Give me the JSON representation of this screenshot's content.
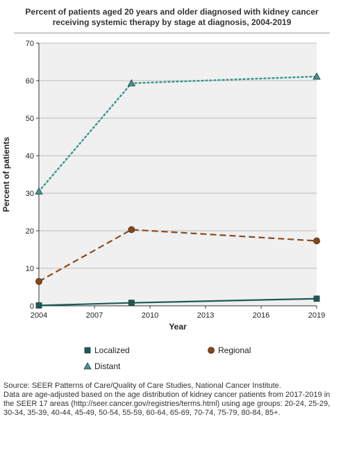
{
  "chart_data": {
    "type": "line",
    "title": "Percent of patients aged 20 years and older diagnosed with kidney cancer receiving systemic therapy by stage at diagnosis, 2004-2019",
    "xlabel": "Year",
    "ylabel": "Percent of patients",
    "xlim": [
      2004,
      2019
    ],
    "ylim": [
      0,
      70
    ],
    "x_ticks": [
      2004,
      2007,
      2010,
      2013,
      2016,
      2019
    ],
    "y_ticks": [
      0,
      10,
      20,
      30,
      40,
      50,
      60,
      70
    ],
    "grid": "horizontal",
    "legend_position": "bottom",
    "series": [
      {
        "name": "Localized",
        "color": "#1a5c55",
        "marker": "square",
        "line": "solid",
        "x": [
          2004,
          2009,
          2019
        ],
        "y": [
          0.1,
          0.8,
          1.9
        ]
      },
      {
        "name": "Regional",
        "color": "#8b4a1e",
        "marker_color": "#8b4513",
        "marker": "circle",
        "line": "dashed",
        "x": [
          2004,
          2009,
          2019
        ],
        "y": [
          6.5,
          20.3,
          17.3
        ]
      },
      {
        "name": "Distant",
        "color": "#3a9a8e",
        "marker": "triangle",
        "line": "dotted",
        "x": [
          2004,
          2009,
          2019
        ],
        "y": [
          30.5,
          59.3,
          61.1
        ]
      }
    ]
  },
  "source": {
    "line1": "Source: SEER Patterns of Care/Quality of Care Studies, National Cancer Institute.",
    "line2": "Data are age-adjusted based on the age distribution of kidney cancer patients from 2017-2019 in the SEER 17 areas (http://seer.cancer.gov/registries/terms.html) using age groups: 20-24, 25-29, 30-34, 35-39, 40-44, 45-49, 50-54, 55-59, 60-64, 65-69, 70-74, 75-79, 80-84, 85+."
  }
}
